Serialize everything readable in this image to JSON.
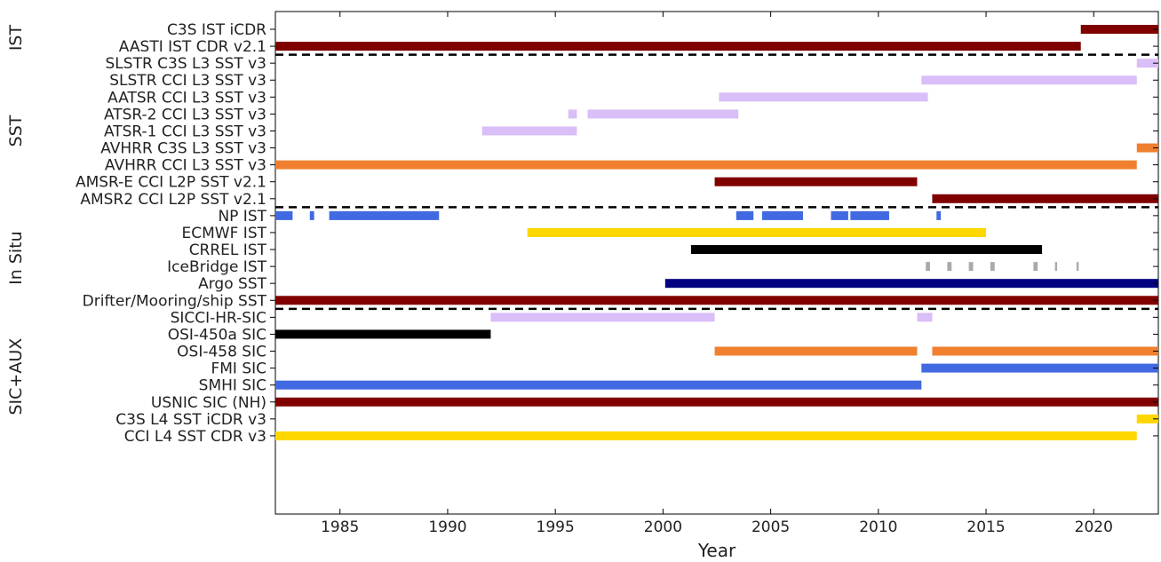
{
  "chart_data": {
    "type": "timeline",
    "xlabel": "Year",
    "xlim": [
      1982.0,
      2023.0
    ],
    "xticks": [
      "1985",
      "1990",
      "1995",
      "2000",
      "2005",
      "2010",
      "2015",
      "2020"
    ],
    "grid": false,
    "groups": [
      {
        "label": "IST",
        "rows": [
          0,
          1
        ]
      },
      {
        "label": "SST",
        "rows": [
          2,
          10
        ]
      },
      {
        "label": "In Situ",
        "rows": [
          11,
          16
        ]
      },
      {
        "label": "SIC+AUX",
        "rows": [
          17,
          24
        ]
      }
    ],
    "separators_after_rows": [
      1,
      10,
      16
    ],
    "rows": [
      {
        "label": "C3S IST iCDR",
        "color": "#800000",
        "segments": [
          [
            2019.4,
            2023.0
          ]
        ]
      },
      {
        "label": "AASTI IST CDR v2.1",
        "color": "#800000",
        "segments": [
          [
            1982.0,
            2019.4
          ]
        ]
      },
      {
        "label": "SLSTR C3S L3 SST v3",
        "color": "#d9bef7",
        "segments": [
          [
            2022.0,
            2023.0
          ]
        ]
      },
      {
        "label": "SLSTR CCI L3 SST v3",
        "color": "#d9bef7",
        "segments": [
          [
            2012.0,
            2022.0
          ]
        ]
      },
      {
        "label": "AATSR CCI L3 SST v3",
        "color": "#d9bef7",
        "segments": [
          [
            2002.6,
            2012.3
          ]
        ]
      },
      {
        "label": "ATSR-2 CCI L3 SST v3",
        "color": "#d9bef7",
        "segments": [
          [
            1995.6,
            1996.0
          ],
          [
            1996.5,
            2003.5
          ]
        ]
      },
      {
        "label": "ATSR-1 CCI L3 SST v3",
        "color": "#d9bef7",
        "segments": [
          [
            1991.6,
            1996.0
          ]
        ]
      },
      {
        "label": "AVHRR C3S L3 SST v3",
        "color": "#f08030",
        "segments": [
          [
            2022.0,
            2023.0
          ]
        ]
      },
      {
        "label": "AVHRR CCI L3 SST v3",
        "color": "#f08030",
        "segments": [
          [
            1982.0,
            2022.0
          ]
        ]
      },
      {
        "label": "AMSR-E CCI L2P SST v2.1",
        "color": "#800000",
        "segments": [
          [
            2002.4,
            2011.8
          ]
        ]
      },
      {
        "label": "AMSR2 CCI L2P SST v2.1",
        "color": "#800000",
        "segments": [
          [
            2012.5,
            2023.0
          ]
        ]
      },
      {
        "label": "NP IST",
        "color": "#4169e1",
        "segments": [
          [
            1982.0,
            1982.8
          ],
          [
            1983.6,
            1983.8
          ],
          [
            1984.5,
            1989.6
          ],
          [
            2003.4,
            2004.2
          ],
          [
            2004.6,
            2006.5
          ],
          [
            2007.8,
            2008.6
          ],
          [
            2008.7,
            2010.5
          ],
          [
            2012.7,
            2012.9
          ]
        ]
      },
      {
        "label": "ECMWF IST",
        "color": "#ffd700",
        "segments": [
          [
            1993.7,
            2015.0
          ]
        ]
      },
      {
        "label": "CRREL IST",
        "color": "#000000",
        "segments": [
          [
            2001.3,
            2017.6
          ]
        ]
      },
      {
        "label": "IceBridge IST",
        "color": "#aaaaaa",
        "segments": [
          [
            2012.2,
            2012.4
          ],
          [
            2013.2,
            2013.4
          ],
          [
            2014.2,
            2014.4
          ],
          [
            2015.2,
            2015.4
          ],
          [
            2017.2,
            2017.4
          ],
          [
            2018.2,
            2018.3
          ],
          [
            2019.2,
            2019.3
          ]
        ]
      },
      {
        "label": "Argo SST",
        "color": "#000080",
        "segments": [
          [
            2000.1,
            2023.0
          ]
        ]
      },
      {
        "label": "Drifter/Mooring/ship SST",
        "color": "#800000",
        "segments": [
          [
            1982.0,
            2023.0
          ]
        ]
      },
      {
        "label": "SICCI-HR-SIC",
        "color": "#d9bef7",
        "segments": [
          [
            1992.0,
            2002.4
          ],
          [
            2011.8,
            2012.5
          ]
        ]
      },
      {
        "label": "OSI-450a SIC",
        "color": "#000000",
        "segments": [
          [
            1982.0,
            1992.0
          ]
        ]
      },
      {
        "label": "OSI-458 SIC",
        "color": "#f08030",
        "segments": [
          [
            2002.4,
            2011.8
          ],
          [
            2012.5,
            2023.0
          ]
        ]
      },
      {
        "label": "FMI SIC",
        "color": "#4169e1",
        "segments": [
          [
            2012.0,
            2023.0
          ]
        ]
      },
      {
        "label": "SMHI SIC",
        "color": "#4169e1",
        "segments": [
          [
            1982.0,
            2012.0
          ]
        ]
      },
      {
        "label": "USNIC SIC (NH)",
        "color": "#800000",
        "segments": [
          [
            1982.0,
            2023.0
          ]
        ]
      },
      {
        "label": "C3S L4 SST iCDR v3",
        "color": "#ffd700",
        "segments": [
          [
            2022.0,
            2023.0
          ]
        ]
      },
      {
        "label": "CCI L4 SST CDR v3",
        "color": "#ffd700",
        "segments": [
          [
            1982.0,
            2022.0
          ]
        ]
      }
    ]
  }
}
